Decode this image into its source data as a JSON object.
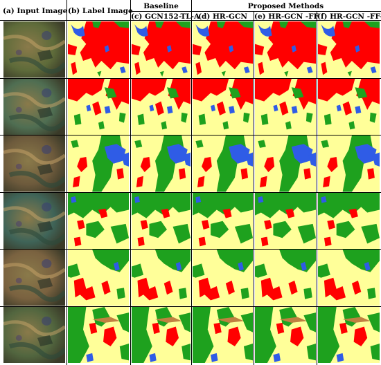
{
  "figure": {
    "group_headers": {
      "baseline": "Baseline",
      "proposed": "Proposed Methods"
    },
    "columns": [
      {
        "id": "input",
        "label": "(a)  Input Image"
      },
      {
        "id": "label",
        "label": "(b)  Label Image"
      },
      {
        "id": "baseline",
        "label": "(c)  GCN152-TL-A"
      },
      {
        "id": "hrgcn",
        "label": "(d)  HR-GCN"
      },
      {
        "id": "hrgcn-ff",
        "label": "(e)  HR-GCN -FF"
      },
      {
        "id": "hrgcn-ffda",
        "label": "(f)  HR-GCN -FF-DA"
      }
    ],
    "row_count": 6,
    "class_colors": {
      "background": "#ffff99",
      "forest": "#1ea11e",
      "urban": "#ff0000",
      "water": "#2f5ce6",
      "misc": "#c08040"
    }
  }
}
